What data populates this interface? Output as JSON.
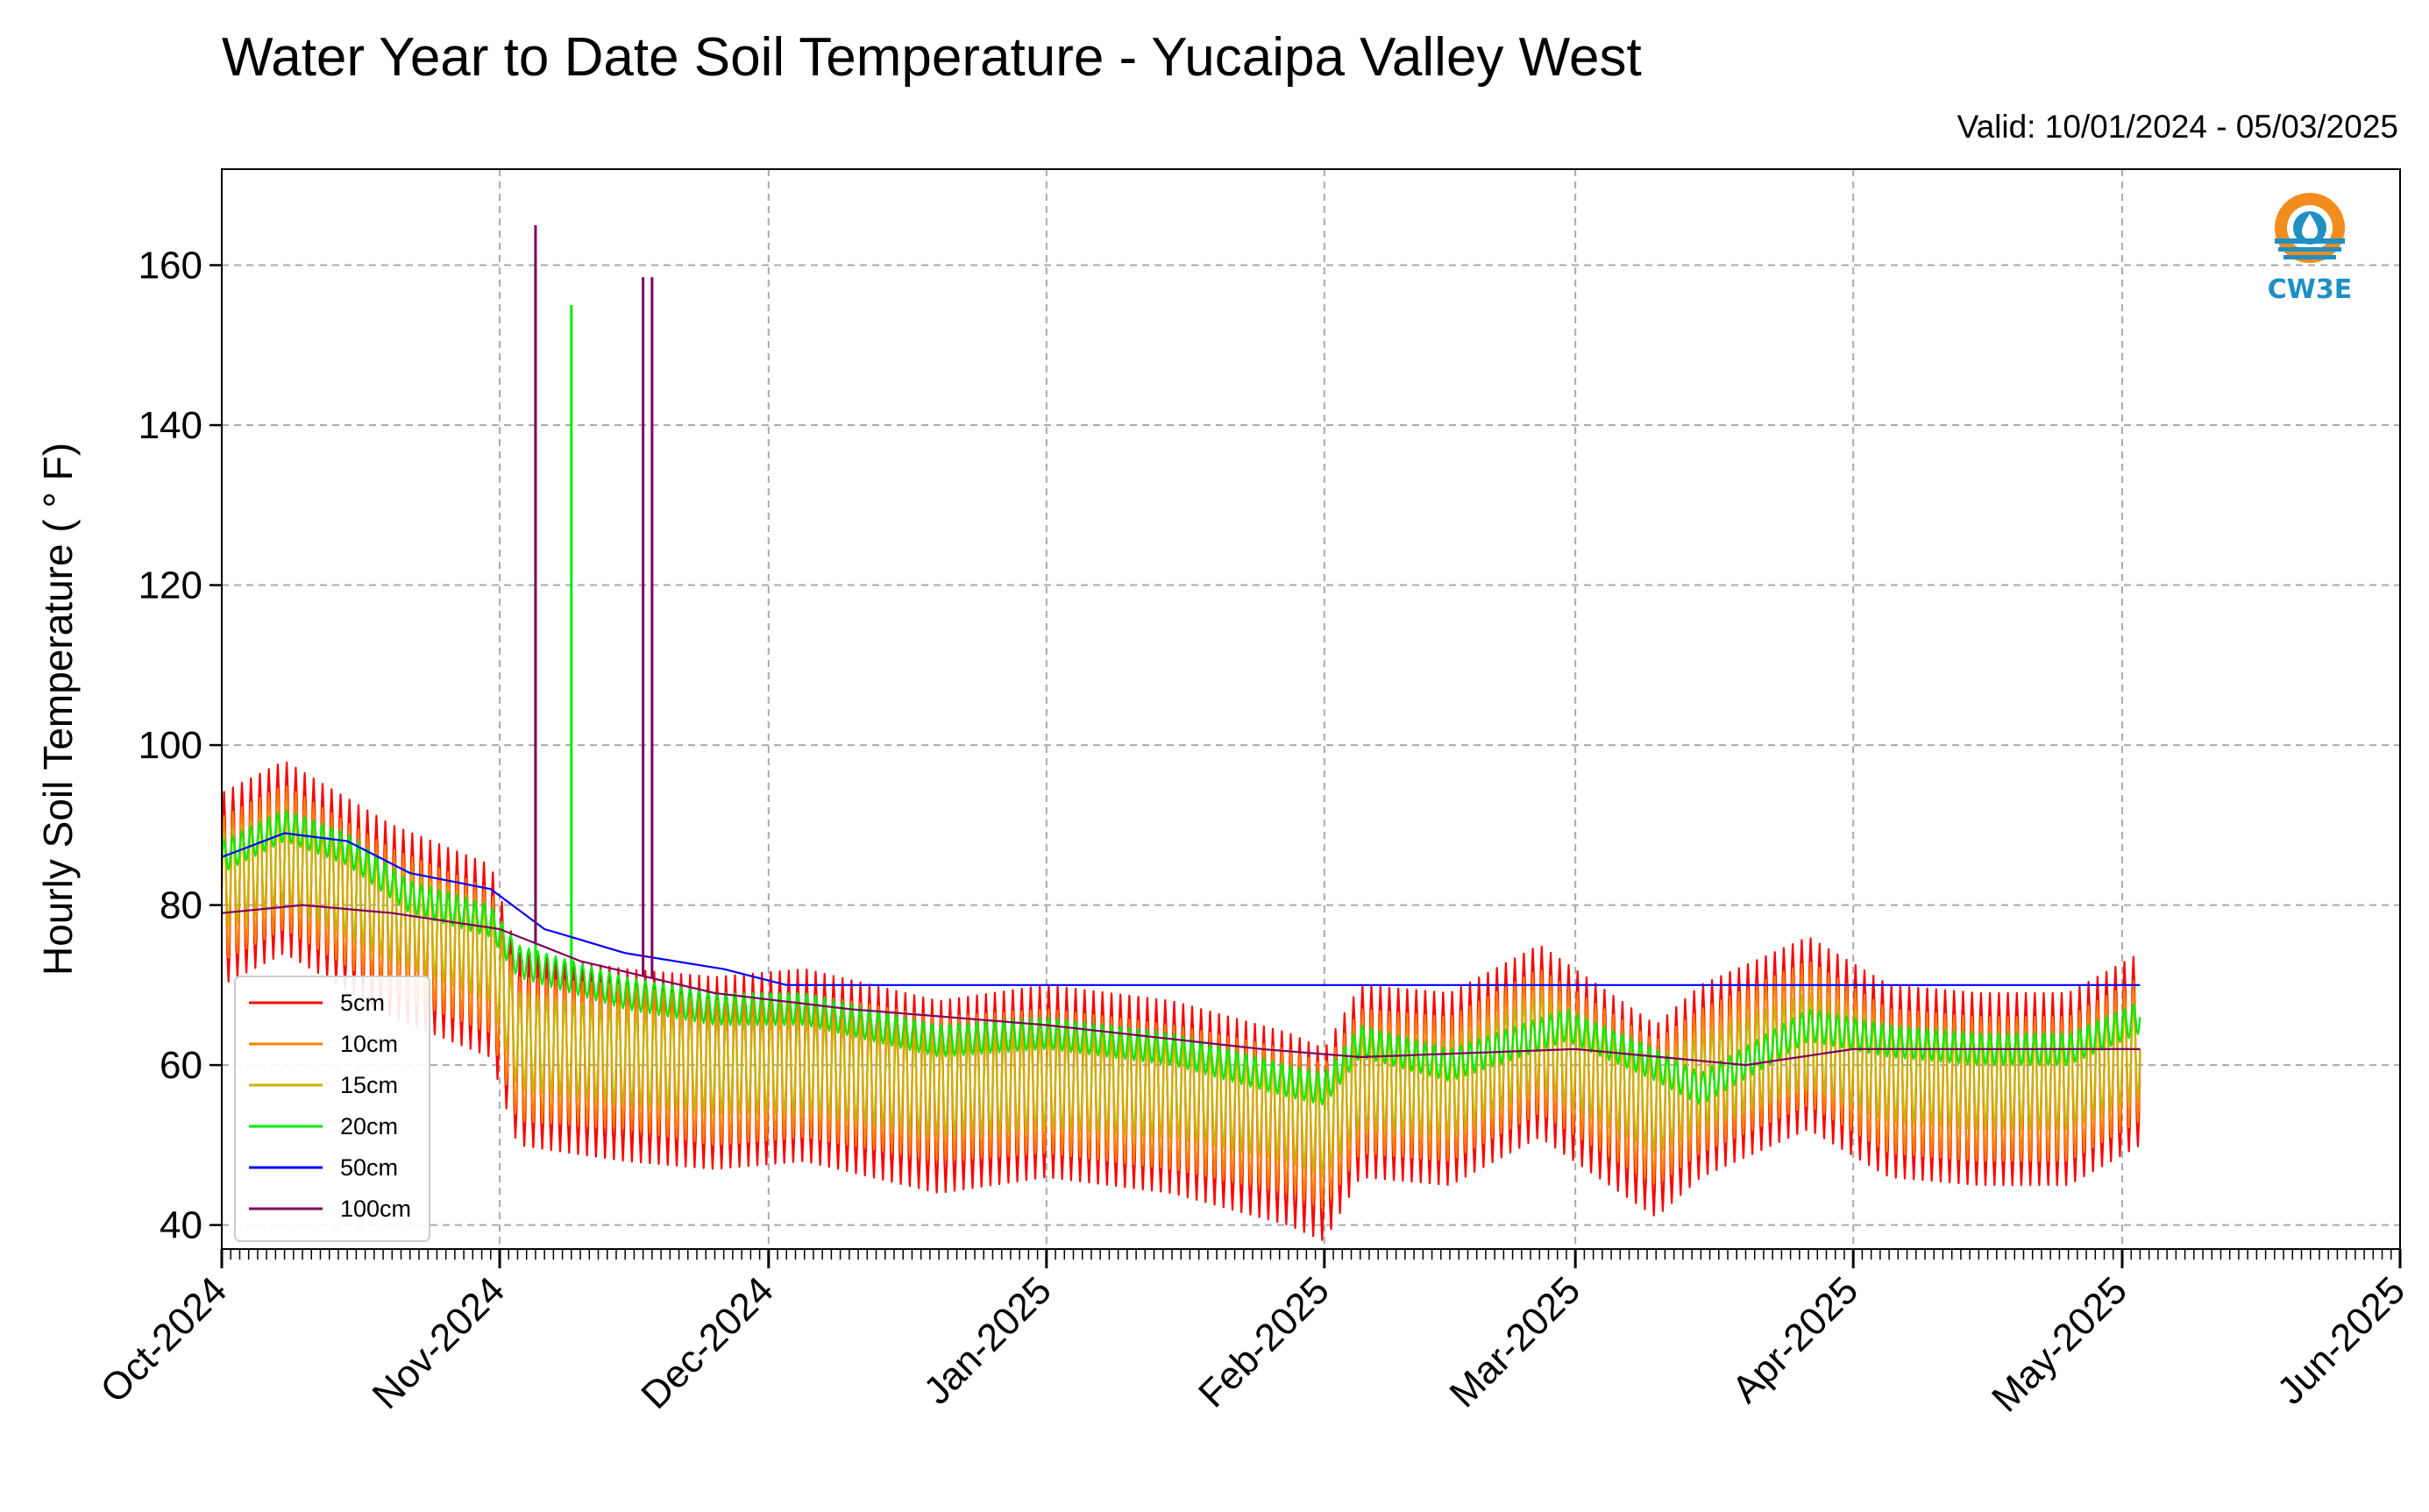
{
  "chart_data": {
    "type": "line",
    "title": "Water Year to Date Soil Temperature - Yucaipa Valley West",
    "subtitle": "Valid: 10/01/2024 - 05/03/2025",
    "ylabel": "Hourly Soil Temperature ( ° F)",
    "xlabel": "",
    "xlim": [
      "2024-10-01",
      "2025-06-01"
    ],
    "ylim": [
      37,
      172
    ],
    "grid": true,
    "legend_position": "lower-left",
    "x_ticks": [
      "Oct-2024",
      "Nov-2024",
      "Dec-2024",
      "Jan-2025",
      "Feb-2025",
      "Mar-2025",
      "Apr-2025",
      "May-2025",
      "Jun-2025"
    ],
    "y_ticks": [
      40,
      60,
      80,
      100,
      120,
      140,
      160
    ],
    "logo_text": "CW3E",
    "series": [
      {
        "name": "5cm",
        "color": "#ff0000",
        "daily_amplitude": 12,
        "points": [
          [
            "2024-10-01",
            82
          ],
          [
            "2024-10-08",
            86
          ],
          [
            "2024-10-20",
            78
          ],
          [
            "2024-10-31",
            73
          ],
          [
            "2024-11-03",
            62
          ],
          [
            "2024-11-15",
            60
          ],
          [
            "2024-11-25",
            59
          ],
          [
            "2024-12-05",
            60
          ],
          [
            "2024-12-20",
            56
          ],
          [
            "2025-01-01",
            58
          ],
          [
            "2025-01-15",
            56
          ],
          [
            "2025-01-28",
            52
          ],
          [
            "2025-02-01",
            50
          ],
          [
            "2025-02-05",
            58
          ],
          [
            "2025-02-15",
            57
          ],
          [
            "2025-02-25",
            63
          ],
          [
            "2025-03-10",
            53
          ],
          [
            "2025-03-15",
            58
          ],
          [
            "2025-03-27",
            64
          ],
          [
            "2025-04-05",
            58
          ],
          [
            "2025-04-15",
            57
          ],
          [
            "2025-04-25",
            57
          ],
          [
            "2025-05-03",
            62
          ]
        ]
      },
      {
        "name": "10cm",
        "color": "#ff8000",
        "daily_amplitude": 9,
        "points": [
          [
            "2024-10-01",
            82
          ],
          [
            "2024-10-08",
            86
          ],
          [
            "2024-10-20",
            78
          ],
          [
            "2024-10-31",
            73
          ],
          [
            "2024-11-03",
            62
          ],
          [
            "2024-11-15",
            61
          ],
          [
            "2024-11-25",
            59
          ],
          [
            "2024-12-05",
            60
          ],
          [
            "2024-12-20",
            57
          ],
          [
            "2025-01-01",
            58
          ],
          [
            "2025-01-15",
            56
          ],
          [
            "2025-01-28",
            53
          ],
          [
            "2025-02-01",
            51
          ],
          [
            "2025-02-05",
            58
          ],
          [
            "2025-02-15",
            57
          ],
          [
            "2025-02-25",
            63
          ],
          [
            "2025-03-10",
            54
          ],
          [
            "2025-03-15",
            58
          ],
          [
            "2025-03-27",
            64
          ],
          [
            "2025-04-05",
            58
          ],
          [
            "2025-04-15",
            57
          ],
          [
            "2025-04-25",
            57
          ],
          [
            "2025-05-03",
            62
          ]
        ]
      },
      {
        "name": "15cm",
        "color": "#c8b400",
        "daily_amplitude": 6,
        "points": [
          [
            "2024-10-01",
            83
          ],
          [
            "2024-10-08",
            86
          ],
          [
            "2024-10-20",
            79
          ],
          [
            "2024-10-31",
            74
          ],
          [
            "2024-11-03",
            63
          ],
          [
            "2024-11-15",
            61
          ],
          [
            "2024-11-25",
            60
          ],
          [
            "2024-12-05",
            60
          ],
          [
            "2024-12-20",
            57
          ],
          [
            "2025-01-01",
            58
          ],
          [
            "2025-01-15",
            57
          ],
          [
            "2025-01-28",
            54
          ],
          [
            "2025-02-01",
            52
          ],
          [
            "2025-02-05",
            58
          ],
          [
            "2025-02-15",
            57
          ],
          [
            "2025-02-25",
            63
          ],
          [
            "2025-03-10",
            55
          ],
          [
            "2025-03-15",
            58
          ],
          [
            "2025-03-27",
            63
          ],
          [
            "2025-04-05",
            59
          ],
          [
            "2025-04-15",
            58
          ],
          [
            "2025-04-25",
            58
          ],
          [
            "2025-05-03",
            62
          ]
        ]
      },
      {
        "name": "20cm",
        "color": "#00ee00",
        "daily_amplitude": 2,
        "points": [
          [
            "2024-10-01",
            86
          ],
          [
            "2024-10-08",
            90
          ],
          [
            "2024-10-15",
            87
          ],
          [
            "2024-10-22",
            81
          ],
          [
            "2024-10-31",
            78
          ],
          [
            "2024-11-03",
            73
          ],
          [
            "2024-11-15",
            69
          ],
          [
            "2024-11-25",
            67
          ],
          [
            "2024-12-05",
            67
          ],
          [
            "2024-12-20",
            63
          ],
          [
            "2025-01-01",
            64
          ],
          [
            "2025-01-15",
            62
          ],
          [
            "2025-01-28",
            58
          ],
          [
            "2025-02-01",
            57
          ],
          [
            "2025-02-05",
            63
          ],
          [
            "2025-02-15",
            60
          ],
          [
            "2025-02-28",
            65
          ],
          [
            "2025-03-10",
            60
          ],
          [
            "2025-03-15",
            57
          ],
          [
            "2025-03-27",
            65
          ],
          [
            "2025-04-05",
            63
          ],
          [
            "2025-04-15",
            62
          ],
          [
            "2025-04-25",
            62
          ],
          [
            "2025-05-03",
            66
          ]
        ],
        "spikes": [
          {
            "x": "2024-11-05",
            "y": 161
          },
          {
            "x": "2024-11-09",
            "y": 155
          }
        ]
      },
      {
        "name": "50cm",
        "color": "#0000ff",
        "daily_amplitude": 0,
        "points": [
          [
            "2024-10-01",
            86
          ],
          [
            "2024-10-08",
            89
          ],
          [
            "2024-10-15",
            88
          ],
          [
            "2024-10-22",
            84
          ],
          [
            "2024-10-31",
            82
          ],
          [
            "2024-11-06",
            77
          ],
          [
            "2024-11-15",
            74
          ],
          [
            "2024-11-26",
            72
          ],
          [
            "2024-12-03",
            70
          ],
          [
            "2025-05-03",
            70
          ]
        ]
      },
      {
        "name": "100cm",
        "color": "#800060",
        "daily_amplitude": 0,
        "points": [
          [
            "2024-10-01",
            79
          ],
          [
            "2024-10-10",
            80
          ],
          [
            "2024-10-20",
            79
          ],
          [
            "2024-11-01",
            77
          ],
          [
            "2024-11-10",
            73
          ],
          [
            "2024-11-25",
            69
          ],
          [
            "2024-12-10",
            67
          ],
          [
            "2025-01-01",
            65
          ],
          [
            "2025-01-25",
            62
          ],
          [
            "2025-02-05",
            61
          ],
          [
            "2025-03-01",
            62
          ],
          [
            "2025-03-20",
            60
          ],
          [
            "2025-04-01",
            62
          ],
          [
            "2025-04-25",
            62
          ],
          [
            "2025-05-03",
            62
          ]
        ],
        "spikes": [
          {
            "x": "2024-11-05",
            "y": 165
          },
          {
            "x": "2024-11-17",
            "y": 158.5
          },
          {
            "x": "2024-11-18",
            "y": 158.5
          }
        ]
      }
    ]
  }
}
